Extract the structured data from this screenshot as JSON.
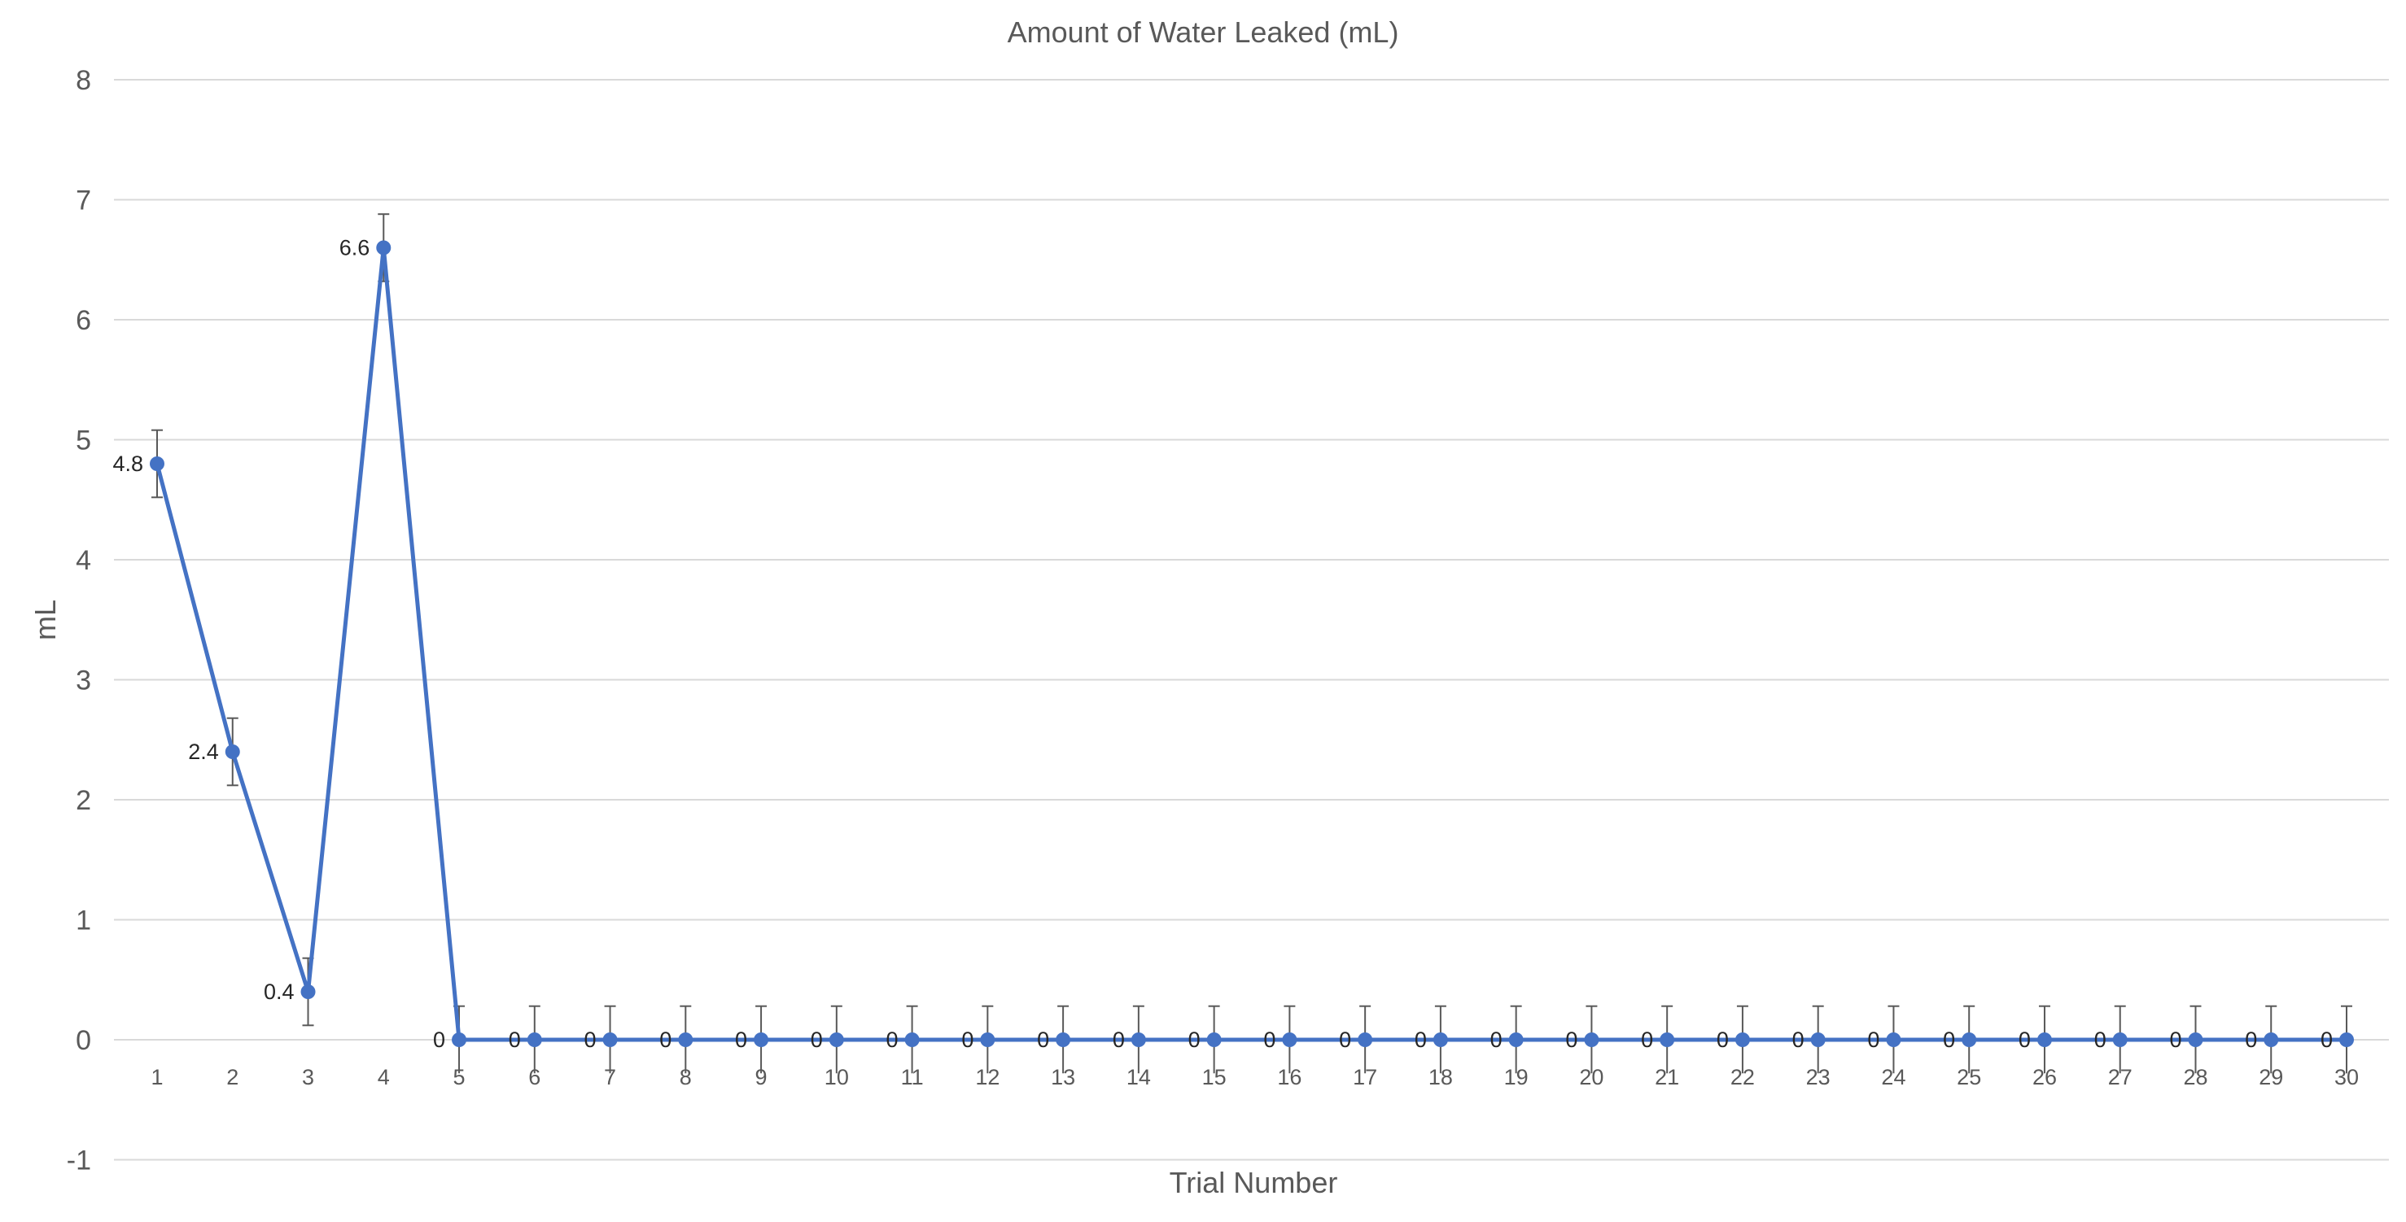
{
  "chart_data": {
    "type": "line",
    "title": "Amount of Water Leaked (mL)",
    "xlabel": "Trial Number",
    "ylabel": "mL",
    "ylim": [
      -1,
      8
    ],
    "yticks": [
      "-1",
      "0",
      "1",
      "2",
      "3",
      "4",
      "5",
      "6",
      "7",
      "8"
    ],
    "grid": true,
    "categories": [
      "1",
      "2",
      "3",
      "4",
      "5",
      "6",
      "7",
      "8",
      "9",
      "10",
      "11",
      "12",
      "13",
      "14",
      "15",
      "16",
      "17",
      "18",
      "19",
      "20",
      "21",
      "22",
      "23",
      "24",
      "25",
      "26",
      "27",
      "28",
      "29",
      "30"
    ],
    "series": [
      {
        "color": "#4472c4",
        "values": [
          4.8,
          2.4,
          0.4,
          6.6,
          0,
          0,
          0,
          0,
          0,
          0,
          0,
          0,
          0,
          0,
          0,
          0,
          0,
          0,
          0,
          0,
          0,
          0,
          0,
          0,
          0,
          0,
          0,
          0,
          0,
          0
        ],
        "error_bar": 0.28,
        "data_labels": [
          "4.8",
          "2.4",
          "0.4",
          "6.6",
          "0",
          "0",
          "0",
          "0",
          "0",
          "0",
          "0",
          "0",
          "0",
          "0",
          "0",
          "0",
          "0",
          "0",
          "0",
          "0",
          "0",
          "0",
          "0",
          "0",
          "0",
          "0",
          "0",
          "0",
          "0",
          "0"
        ]
      }
    ]
  }
}
